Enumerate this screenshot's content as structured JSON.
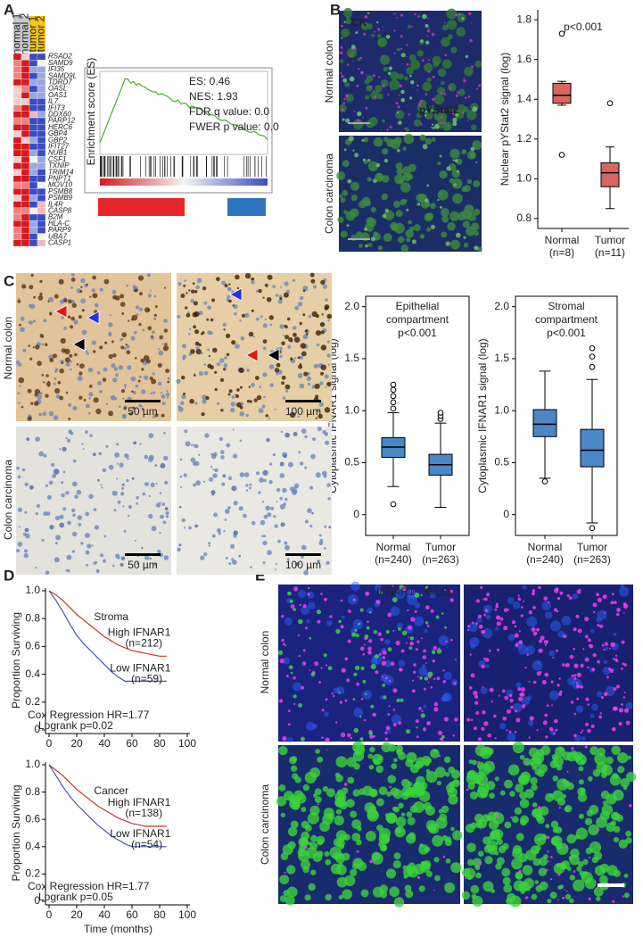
{
  "panels": {
    "a": {
      "label": "A",
      "heatmap": {
        "columns": [
          "normal 1",
          "normal 2",
          "tumor 1",
          "tumor 2"
        ],
        "genes": [
          "RSAD2",
          "SAMD9",
          "IFI35",
          "SAMD9L",
          "TDRD7",
          "OASL",
          "OAS1",
          "IL7",
          "IFIT3",
          "DDX60",
          "PARP12",
          "HERC6",
          "GBP4",
          "GBP2",
          "IFIT27",
          "NUB1",
          "CSF1",
          "TXNIP",
          "TRIM14",
          "PNPT1",
          "MOV10",
          "PSMB8",
          "PSMB9",
          "IL4R",
          "CASP8",
          "B2M",
          "HLA-C",
          "PARP9",
          "UBA7",
          "CASP1"
        ]
      },
      "gsea": {
        "y_axis": "Enrichment score (ES)",
        "stats": [
          "ES: 0.46",
          "NES: 1.93",
          "FDR q value: 0.0",
          "FWER p value: 0.0"
        ]
      }
    },
    "b": {
      "label": "B",
      "stain_labels": [
        "CK",
        "pYStat2"
      ],
      "rows": [
        "Normal colon",
        "Colon carcinoma"
      ],
      "boxplot": {
        "ylabel": "Nuclear pYStat2 signal (log)",
        "title": [
          "p<0.001"
        ],
        "ylim": [
          0.75,
          1.85
        ],
        "yticks": [
          0.8,
          {
            "value": 1.0,
            "label": "1.0"
          },
          1.2,
          1.4,
          1.6,
          1.8
        ],
        "groups": [
          {
            "name": "Normal",
            "n": "(n=8)",
            "whisker_low": 1.37,
            "q1": 1.38,
            "median": 1.42,
            "q3": 1.48,
            "whisker_high": 1.49,
            "outliers": [
              1.12,
              1.73
            ]
          },
          {
            "name": "Tumor",
            "n": "(n=11)",
            "whisker_low": 0.85,
            "q1": 0.96,
            "median": 1.03,
            "q3": 1.08,
            "whisker_high": 1.16,
            "outliers": [
              1.38
            ]
          }
        ]
      }
    },
    "c": {
      "label": "C",
      "rows": [
        "Normal colon",
        "Colon carcinoma"
      ],
      "scale_bars": [
        "50 µm",
        "100 µm",
        "50 µm",
        "100 µm"
      ],
      "boxplots": [
        {
          "ylabel": "Cytoplasmic IFNAR1 signal (log)",
          "title": [
            "Epithelial",
            "compartment",
            "p<0.001"
          ],
          "ylim": [
            -0.2,
            2.1
          ],
          "yticks": [
            0,
            0.5,
            {
              "value": 1.0,
              "label": "1.0"
            },
            1.5,
            {
              "value": 2.0,
              "label": "2.0"
            }
          ],
          "groups": [
            {
              "name": "Normal",
              "n": "(n=240)",
              "whisker_low": 0.27,
              "q1": 0.55,
              "median": 0.65,
              "q3": 0.74,
              "whisker_high": 0.98,
              "outliers": [
                0.1,
                1.02,
                1.08,
                1.14,
                1.2,
                1.25
              ]
            },
            {
              "name": "Tumor",
              "n": "(n=263)",
              "whisker_low": 0.07,
              "q1": 0.38,
              "median": 0.48,
              "q3": 0.58,
              "whisker_high": 0.88,
              "outliers": [
                0.92,
                0.95,
                0.98
              ]
            }
          ]
        },
        {
          "ylabel": "Cytoplasmic IFNAR1 signal (log)",
          "title": [
            "Stromal",
            "compartment",
            "p<0.001"
          ],
          "ylim": [
            -0.2,
            2.1
          ],
          "yticks": [
            0,
            0.5,
            {
              "value": 1.0,
              "label": "1.0"
            },
            1.5,
            {
              "value": 2.0,
              "label": "2.0"
            }
          ],
          "groups": [
            {
              "name": "Normal",
              "n": "(n=240)",
              "whisker_low": 0.35,
              "q1": 0.75,
              "median": 0.87,
              "q3": 1.01,
              "whisker_high": 1.38,
              "outliers": [
                0.32
              ]
            },
            {
              "name": "Tumor",
              "n": "(n=263)",
              "whisker_low": -0.08,
              "q1": 0.46,
              "median": 0.62,
              "q3": 0.82,
              "whisker_high": 1.3,
              "outliers": [
                -0.13,
                1.42,
                1.52,
                1.6
              ]
            }
          ]
        }
      ]
    },
    "d": {
      "label": "D",
      "plots": [
        {
          "title": "Stroma",
          "ylabel": "Proportion Surviving",
          "xlim": [
            0,
            100
          ],
          "ylim": [
            0,
            1.0
          ],
          "xticks": [
            0,
            20,
            40,
            60,
            80,
            100
          ],
          "yticks": [
            0,
            0.2,
            0.4,
            0.6,
            0.8,
            {
              "value": 1.0,
              "label": "1.0"
            }
          ],
          "stats": [
            "Cox Regression HR=1.77",
            "Logrank p=0.02"
          ],
          "series": [
            {
              "name": "High IFNAR1",
              "n": "(n=212)",
              "color": "#c0392b",
              "x": [
                0,
                5,
                10,
                15,
                20,
                25,
                30,
                35,
                40,
                45,
                50,
                55,
                60,
                65,
                70,
                75,
                80,
                85
              ],
              "y": [
                1,
                0.97,
                0.93,
                0.88,
                0.83,
                0.79,
                0.75,
                0.71,
                0.67,
                0.64,
                0.61,
                0.59,
                0.57,
                0.56,
                0.55,
                0.54,
                0.53,
                0.53
              ]
            },
            {
              "name": "Low IFNAR1",
              "n": "(n=59)",
              "color": "#4a55b0",
              "x": [
                0,
                5,
                10,
                15,
                20,
                25,
                30,
                35,
                40,
                45,
                50,
                55,
                60,
                65,
                70,
                75,
                80,
                85
              ],
              "y": [
                1,
                0.93,
                0.85,
                0.76,
                0.68,
                0.62,
                0.57,
                0.52,
                0.47,
                0.42,
                0.38,
                0.35,
                0.35,
                0.35,
                0.35,
                0.35,
                0.35,
                0.35
              ]
            }
          ]
        },
        {
          "title": "Cancer",
          "ylabel": "Proportion Surviving",
          "xlabel": "Time (months)",
          "xlim": [
            0,
            100
          ],
          "ylim": [
            0,
            1.0
          ],
          "xticks": [
            0,
            20,
            40,
            60,
            80,
            100
          ],
          "yticks": [
            0,
            0.2,
            0.4,
            0.6,
            0.8,
            {
              "value": 1.0,
              "label": "1.0"
            }
          ],
          "stats": [
            "Cox Regression HR=1.77",
            "Logrank p=0.05"
          ],
          "series": [
            {
              "name": "High IFNAR1",
              "n": "(n=138)",
              "color": "#c0392b",
              "x": [
                0,
                5,
                10,
                15,
                20,
                25,
                30,
                35,
                40,
                45,
                50,
                55,
                60,
                65,
                70,
                75,
                80,
                85
              ],
              "y": [
                1,
                0.96,
                0.92,
                0.87,
                0.82,
                0.78,
                0.74,
                0.7,
                0.67,
                0.64,
                0.61,
                0.59,
                0.57,
                0.56,
                0.55,
                0.55,
                0.55,
                0.55
              ]
            },
            {
              "name": "Low IFNAR1",
              "n": "(n=54)",
              "color": "#4a55b0",
              "x": [
                0,
                5,
                10,
                15,
                20,
                25,
                30,
                35,
                40,
                45,
                50,
                55,
                60,
                65,
                70,
                75,
                80,
                85
              ],
              "y": [
                1,
                0.92,
                0.84,
                0.77,
                0.71,
                0.66,
                0.61,
                0.56,
                0.52,
                0.48,
                0.45,
                0.42,
                0.4,
                0.4,
                0.4,
                0.4,
                0.4,
                0.4
              ]
            }
          ]
        }
      ]
    },
    "e": {
      "label": "E",
      "stain_labels": [
        "IFNAR1",
        "Glut1"
      ],
      "rows": [
        "Normal colon",
        "Colon carcinoma"
      ]
    }
  }
}
